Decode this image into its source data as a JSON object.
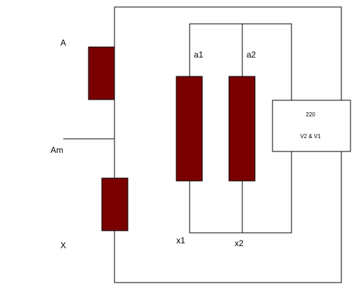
{
  "diagram": {
    "labels": {
      "terminal_a": "A",
      "terminal_am": "Am",
      "terminal_x": "X",
      "tap_a1": "a1",
      "tap_a2": "a2",
      "tap_x1": "x1",
      "tap_x2": "x2"
    },
    "meter_box": {
      "line1": "220",
      "line2": "V2  & V1"
    },
    "colors": {
      "coil_fill": "#7a0000",
      "wire": "#000000",
      "background": "#ffffff"
    }
  }
}
